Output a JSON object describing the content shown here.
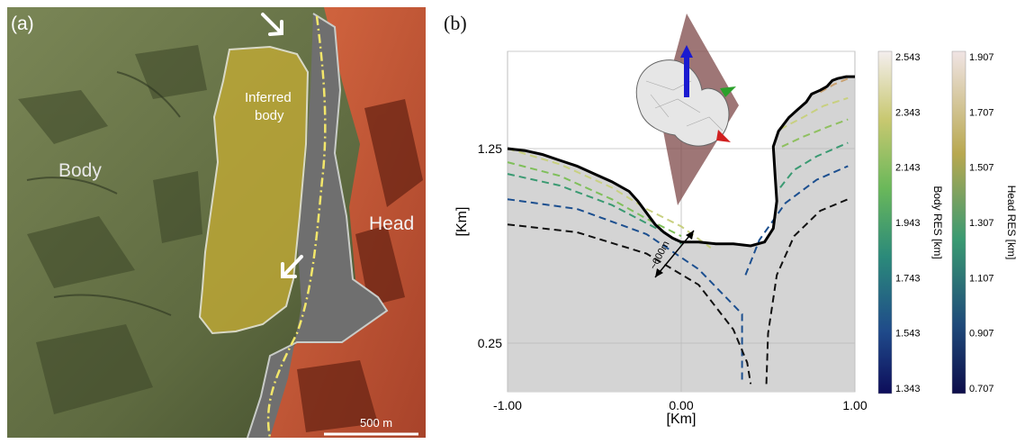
{
  "panel_a": {
    "tag": "(a)",
    "label_body": "Body",
    "label_head": "Head",
    "label_inferred_1": "Inferred",
    "label_inferred_2": "body",
    "scale_bar": "500 m"
  },
  "panel_b": {
    "tag": "(b)",
    "distance_annotation": "~600m"
  },
  "colors": {
    "body_tint": "#6e7a4c",
    "head_tint": "#c8542f",
    "inferred_fill": "#b8a332",
    "neck_gray": "#727272",
    "plot_fill": "#d4d4d4"
  },
  "chart_data": {
    "type": "line",
    "xlabel": "[Km]",
    "ylabel": "[Km]",
    "xlim": [
      -1.0,
      1.0
    ],
    "ylim": [
      0.0,
      1.75
    ],
    "xticks": [
      "-1.00",
      "0.00",
      "1.00"
    ],
    "yticks": [
      "0.25",
      "1.25"
    ],
    "grid": true,
    "surface_profile": [
      [
        -1.0,
        1.25
      ],
      [
        -0.9,
        1.24
      ],
      [
        -0.8,
        1.22
      ],
      [
        -0.7,
        1.19
      ],
      [
        -0.6,
        1.16
      ],
      [
        -0.5,
        1.12
      ],
      [
        -0.4,
        1.08
      ],
      [
        -0.3,
        1.03
      ],
      [
        -0.25,
        0.98
      ],
      [
        -0.2,
        0.92
      ],
      [
        -0.15,
        0.86
      ],
      [
        -0.1,
        0.82
      ],
      [
        -0.05,
        0.79
      ],
      [
        0.0,
        0.77
      ],
      [
        0.1,
        0.77
      ],
      [
        0.2,
        0.76
      ],
      [
        0.3,
        0.76
      ],
      [
        0.4,
        0.75
      ],
      [
        0.48,
        0.77
      ],
      [
        0.53,
        0.84
      ],
      [
        0.55,
        0.98
      ],
      [
        0.54,
        1.12
      ],
      [
        0.53,
        1.26
      ],
      [
        0.56,
        1.34
      ],
      [
        0.62,
        1.41
      ],
      [
        0.67,
        1.45
      ],
      [
        0.72,
        1.49
      ],
      [
        0.75,
        1.53
      ],
      [
        0.8,
        1.55
      ],
      [
        0.84,
        1.57
      ],
      [
        0.87,
        1.6
      ],
      [
        0.9,
        1.61
      ],
      [
        0.95,
        1.62
      ],
      [
        1.0,
        1.62
      ]
    ],
    "body_contours": [
      {
        "name": "2.543",
        "color": "#c8d080",
        "points": [
          [
            -1.0,
            1.25
          ],
          [
            -0.7,
            1.17
          ],
          [
            -0.4,
            1.05
          ],
          [
            -0.2,
            0.94
          ],
          [
            0.0,
            0.85
          ],
          [
            0.17,
            0.74
          ]
        ]
      },
      {
        "name": "2.143",
        "color": "#7fbf5a",
        "points": [
          [
            -1.0,
            1.18
          ],
          [
            -0.7,
            1.11
          ],
          [
            -0.4,
            0.99
          ],
          [
            -0.2,
            0.89
          ],
          [
            0.0,
            0.8
          ]
        ]
      },
      {
        "name": "1.943",
        "color": "#3a9a72",
        "points": [
          [
            -1.0,
            1.12
          ],
          [
            -0.7,
            1.06
          ],
          [
            -0.4,
            0.96
          ],
          [
            -0.1,
            0.82
          ],
          [
            0.0,
            0.76
          ]
        ]
      },
      {
        "name": "1.543",
        "color": "#1c4f8f",
        "points": [
          [
            -1.0,
            0.99
          ],
          [
            -0.6,
            0.94
          ],
          [
            -0.2,
            0.81
          ],
          [
            0.1,
            0.63
          ],
          [
            0.35,
            0.4
          ],
          [
            0.35,
            0.04
          ]
        ]
      },
      {
        "name": "1.343",
        "color": "#111111",
        "points": [
          [
            -1.0,
            0.86
          ],
          [
            -0.6,
            0.82
          ],
          [
            -0.2,
            0.71
          ],
          [
            0.1,
            0.55
          ],
          [
            0.3,
            0.32
          ],
          [
            0.38,
            0.15
          ],
          [
            0.4,
            0.04
          ]
        ]
      }
    ],
    "head_contours": [
      {
        "name": "1.907",
        "color": "#c8a070",
        "points": [
          [
            0.8,
            1.54
          ],
          [
            0.88,
            1.58
          ],
          [
            0.96,
            1.61
          ]
        ]
      },
      {
        "name": "1.707",
        "color": "#c8d080",
        "points": [
          [
            0.57,
            1.35
          ],
          [
            0.7,
            1.41
          ],
          [
            0.82,
            1.47
          ],
          [
            0.96,
            1.51
          ]
        ]
      },
      {
        "name": "1.507",
        "color": "#8fc060",
        "points": [
          [
            0.58,
            1.26
          ],
          [
            0.7,
            1.31
          ],
          [
            0.84,
            1.36
          ],
          [
            0.96,
            1.4
          ]
        ]
      },
      {
        "name": "1.307",
        "color": "#3a9a72",
        "points": [
          [
            0.57,
            1.05
          ],
          [
            0.65,
            1.14
          ],
          [
            0.78,
            1.21
          ],
          [
            0.96,
            1.28
          ]
        ]
      },
      {
        "name": "1.107",
        "color": "#1c4f8f",
        "points": [
          [
            0.37,
            0.6
          ],
          [
            0.45,
            0.78
          ],
          [
            0.6,
            0.97
          ],
          [
            0.78,
            1.09
          ],
          [
            0.96,
            1.16
          ]
        ]
      },
      {
        "name": "0.907",
        "color": "#111111",
        "points": [
          [
            0.49,
            0.04
          ],
          [
            0.5,
            0.3
          ],
          [
            0.55,
            0.6
          ],
          [
            0.65,
            0.8
          ],
          [
            0.8,
            0.93
          ],
          [
            0.96,
            0.99
          ]
        ]
      }
    ],
    "colorbars": [
      {
        "label": "Body RES [km]",
        "ticks": [
          "2.543",
          "2.343",
          "2.143",
          "1.943",
          "1.743",
          "1.543",
          "1.343"
        ]
      },
      {
        "label": "Head RES [km]",
        "ticks": [
          "1.907",
          "1.707",
          "1.507",
          "1.307",
          "1.107",
          "0.907",
          "0.707"
        ]
      }
    ]
  }
}
